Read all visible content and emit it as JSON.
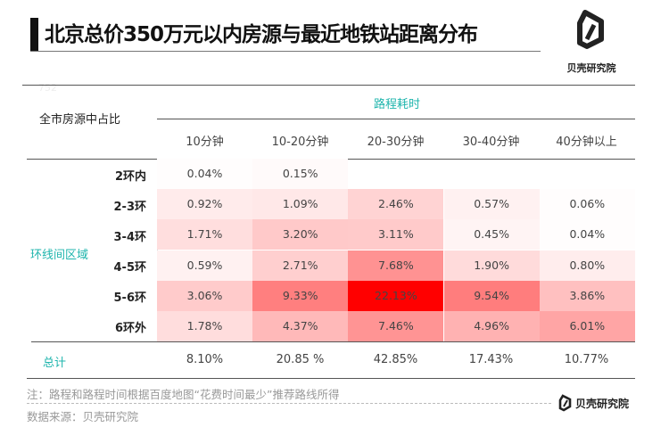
{
  "title": "北京总价350万元以内房源与最近地铁站距离分布",
  "brand": "贝壳研究院",
  "faint_mark": "752",
  "colors": {
    "accent": "#1fb5ad",
    "heat_max": "#ff0000"
  },
  "chart_data": {
    "type": "heatmap",
    "title": "北京总价350万元以内房源与最近地铁站距离分布",
    "corner_label": "全市房源中占比",
    "xlabel": "路程耗时",
    "ylabel": "环线间区域",
    "categories": [
      "10分钟",
      "10-20分钟",
      "20-30分钟",
      "30-40分钟",
      "40分钟以上"
    ],
    "rows": [
      {
        "label": "2环内",
        "values": [
          "0.04%",
          "0.15%",
          null,
          null,
          null
        ]
      },
      {
        "label": "2-3环",
        "values": [
          "0.92%",
          "1.09%",
          "2.46%",
          "0.57%",
          "0.06%"
        ]
      },
      {
        "label": "3-4环",
        "values": [
          "1.71%",
          "3.20%",
          "3.11%",
          "0.45%",
          "0.04%"
        ]
      },
      {
        "label": "4-5环",
        "values": [
          "0.59%",
          "2.71%",
          "7.68%",
          "1.90%",
          "0.80%"
        ]
      },
      {
        "label": "5-6环",
        "values": [
          "3.06%",
          "9.33%",
          "22.13%",
          "9.54%",
          "3.86%"
        ]
      },
      {
        "label": "6环外",
        "values": [
          "1.78%",
          "4.37%",
          "7.46%",
          "4.96%",
          "6.01%"
        ]
      }
    ],
    "total_label": "总计",
    "totals": [
      "8.10%",
      "20.85 %",
      "42.85%",
      "17.43%",
      "10.77%"
    ]
  },
  "footer": {
    "note": "注：路程和路程时间根据百度地图“花费时间最少”推荐路线所得",
    "source": "数据来源：贝壳研究院",
    "brand": "贝壳研究院"
  }
}
